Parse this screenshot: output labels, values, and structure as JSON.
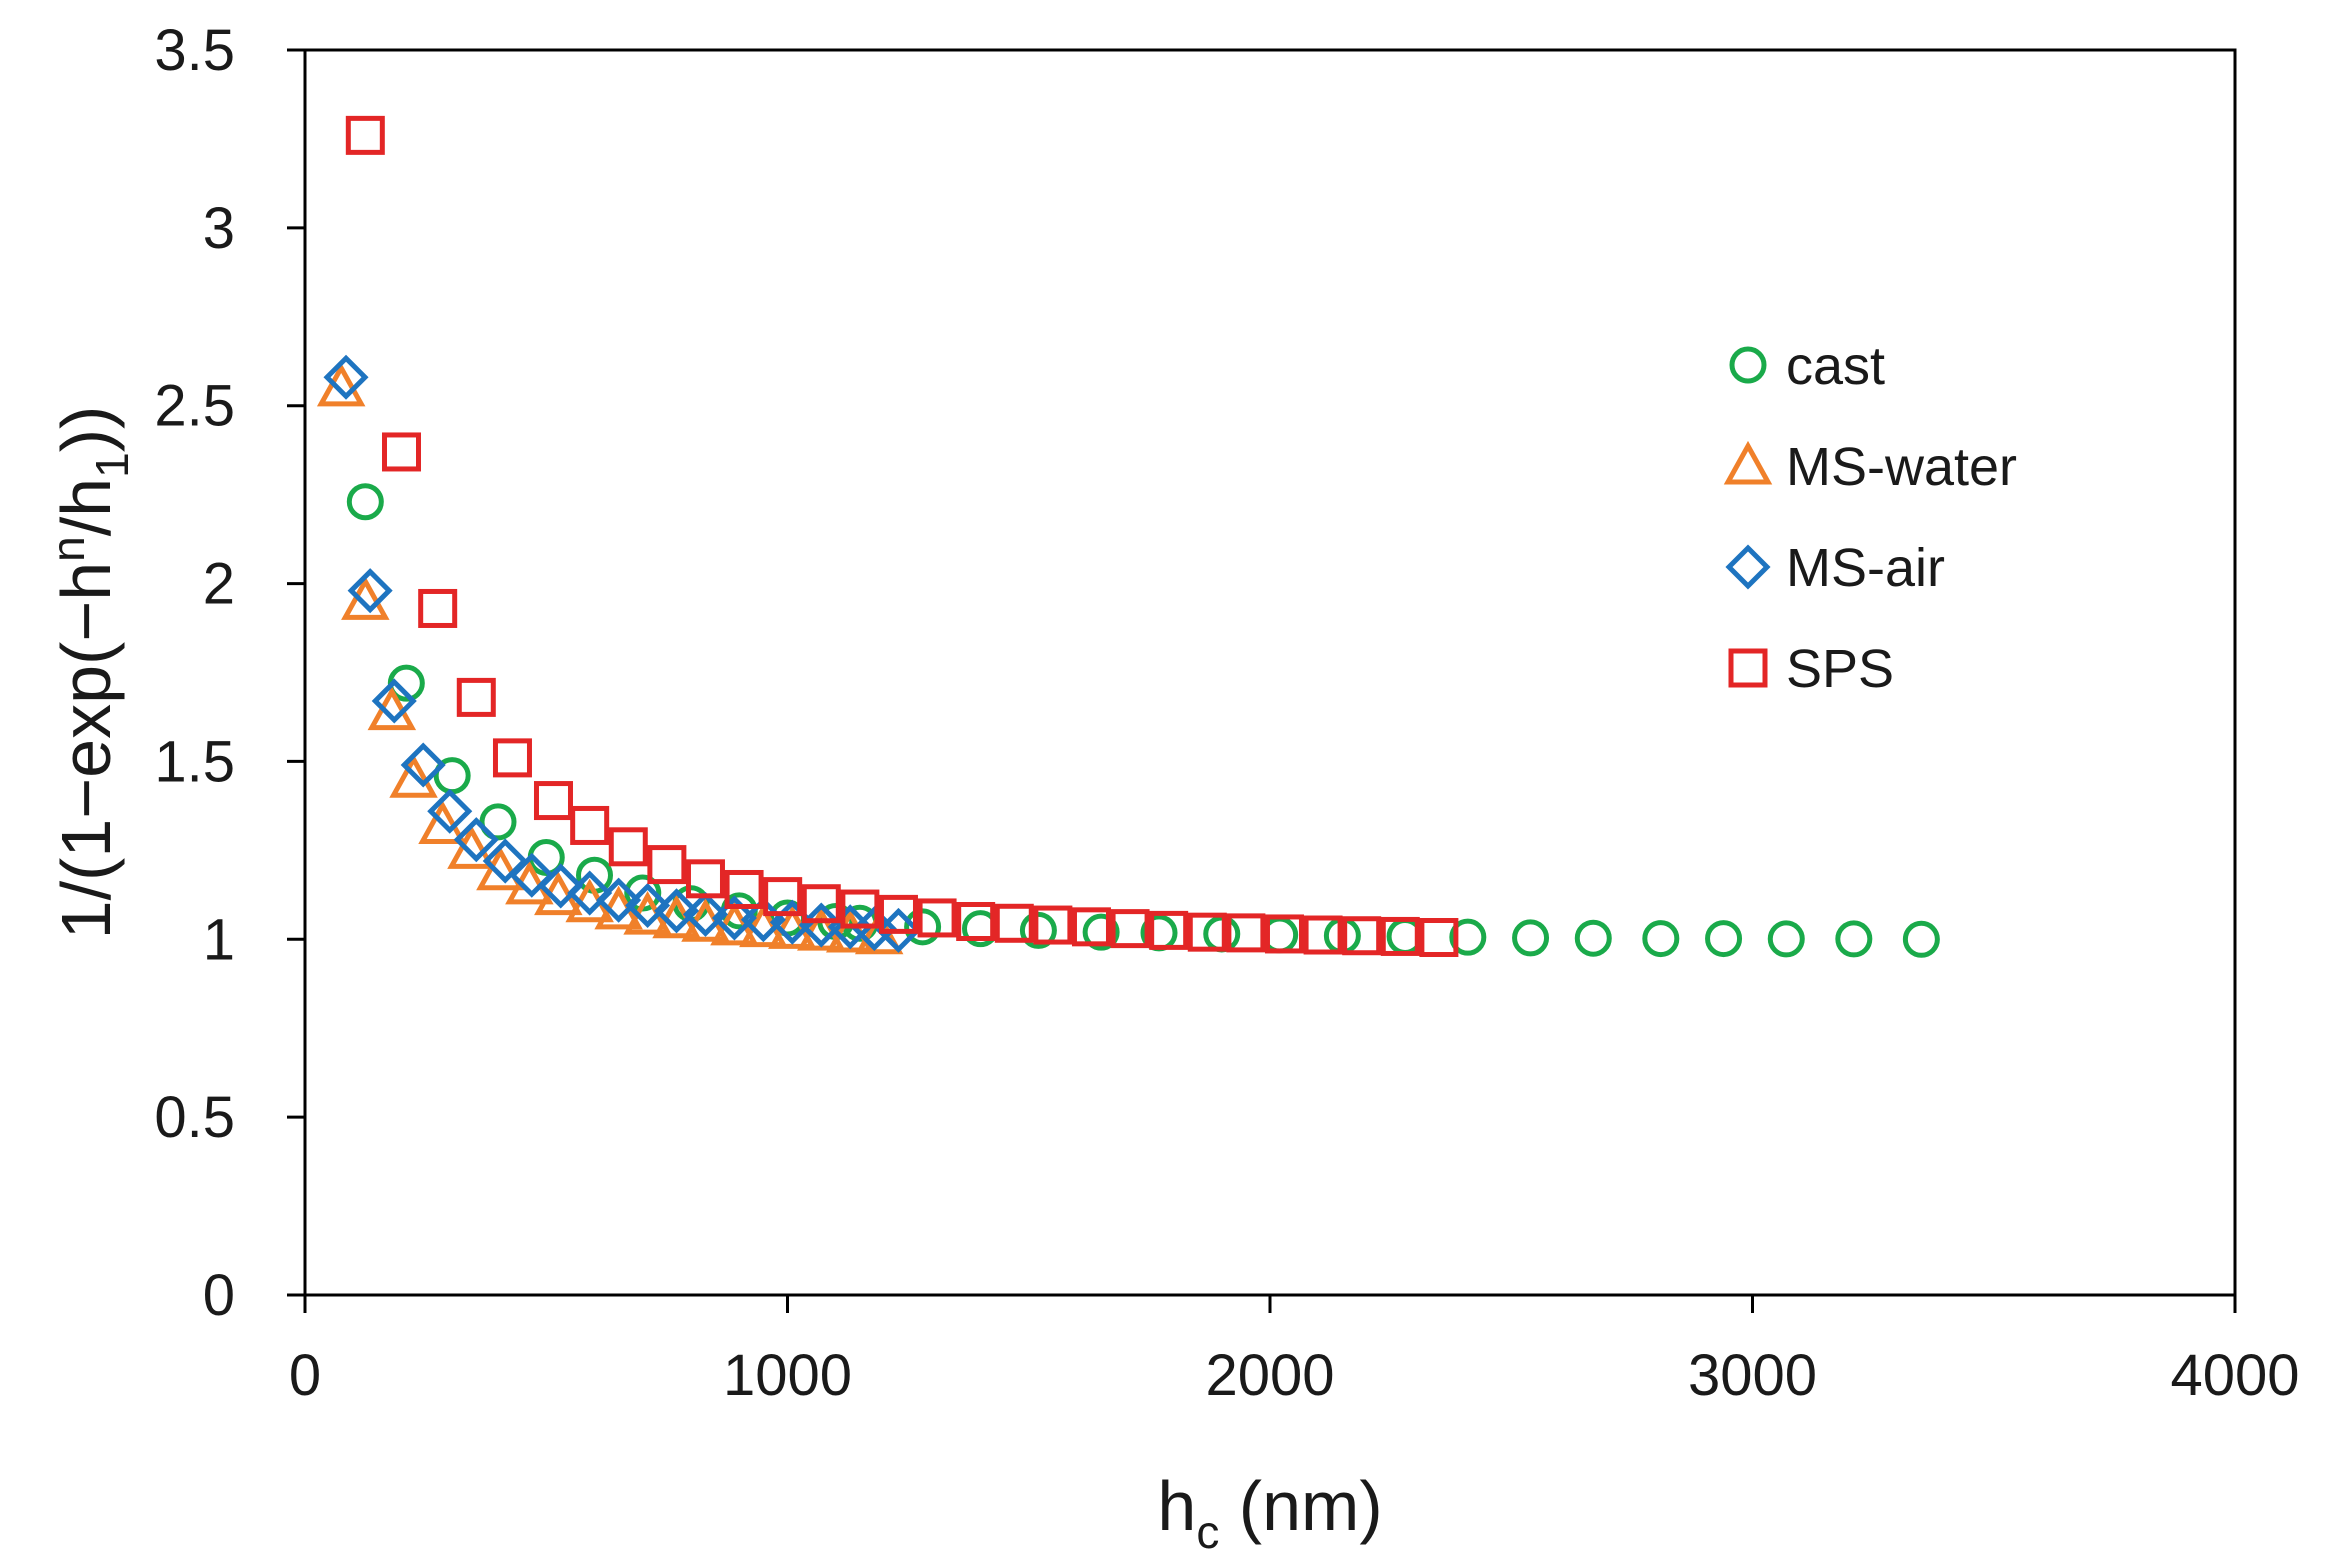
{
  "chart_data": {
    "type": "scatter",
    "title": "",
    "xlabel": {
      "base": "h",
      "sub": "c",
      "rest": " (nm)"
    },
    "ylabel": {
      "pre": "1/(1−exp(−h",
      "sup": "n",
      "mid": "/h",
      "sub": "1",
      "post": "))"
    },
    "xlim": [
      0,
      4000
    ],
    "ylim": [
      0,
      3.5
    ],
    "xticks": [
      0,
      1000,
      2000,
      3000,
      4000
    ],
    "xtick_labels": [
      "0",
      "1000",
      "2000",
      "3000",
      "4000"
    ],
    "yticks": [
      0,
      0.5,
      1,
      1.5,
      2,
      2.5,
      3,
      3.5
    ],
    "ytick_labels": [
      "0",
      "0.5",
      "1",
      "1.5",
      "2",
      "2.5",
      "3",
      "3.5"
    ],
    "legend_position": "right",
    "series": [
      {
        "name": "cast",
        "marker": "circle",
        "color": "#1aaa4a",
        "x": [
          125,
          210,
          305,
          400,
          500,
          600,
          700,
          800,
          900,
          1000,
          1100,
          1150,
          1280,
          1400,
          1520,
          1650,
          1770,
          1900,
          2020,
          2150,
          2280,
          2410,
          2540,
          2670,
          2810,
          2940,
          3070,
          3210,
          3350
        ],
        "y": [
          2.23,
          1.72,
          1.46,
          1.33,
          1.23,
          1.18,
          1.13,
          1.1,
          1.08,
          1.06,
          1.05,
          1.045,
          1.035,
          1.03,
          1.025,
          1.02,
          1.018,
          1.015,
          1.012,
          1.01,
          1.008,
          1.006,
          1.004,
          1.003,
          1.002,
          1.002,
          1.001,
          1.001,
          1.0
        ]
      },
      {
        "name": "MS-water",
        "marker": "triangle",
        "color": "#f0802a",
        "x": [
          75,
          125,
          180,
          225,
          285,
          345,
          405,
          465,
          525,
          590,
          650,
          710,
          770,
          830,
          890,
          950,
          1010,
          1070,
          1130,
          1190
        ],
        "y": [
          2.55,
          1.95,
          1.64,
          1.45,
          1.32,
          1.25,
          1.19,
          1.15,
          1.12,
          1.1,
          1.08,
          1.065,
          1.055,
          1.045,
          1.035,
          1.03,
          1.025,
          1.02,
          1.015,
          1.01
        ]
      },
      {
        "name": "MS-air",
        "marker": "diamond",
        "color": "#1e74c0",
        "x": [
          85,
          135,
          185,
          245,
          300,
          355,
          415,
          470,
          530,
          590,
          650,
          710,
          770,
          830,
          890,
          950,
          1010,
          1070,
          1130,
          1180,
          1230
        ],
        "y": [
          2.58,
          1.98,
          1.67,
          1.49,
          1.36,
          1.28,
          1.22,
          1.18,
          1.15,
          1.13,
          1.11,
          1.095,
          1.08,
          1.07,
          1.06,
          1.055,
          1.048,
          1.04,
          1.035,
          1.03,
          1.025
        ]
      },
      {
        "name": "SPS",
        "marker": "square",
        "color": "#e32626",
        "x": [
          125,
          200,
          275,
          355,
          430,
          515,
          590,
          670,
          750,
          830,
          910,
          990,
          1070,
          1150,
          1230,
          1310,
          1390,
          1470,
          1550,
          1630,
          1710,
          1790,
          1870,
          1950,
          2030,
          2110,
          2190,
          2270,
          2350
        ],
        "y": [
          3.26,
          2.37,
          1.93,
          1.68,
          1.51,
          1.39,
          1.32,
          1.26,
          1.21,
          1.17,
          1.14,
          1.12,
          1.1,
          1.085,
          1.07,
          1.06,
          1.05,
          1.045,
          1.04,
          1.035,
          1.03,
          1.025,
          1.02,
          1.018,
          1.015,
          1.012,
          1.01,
          1.008,
          1.005
        ]
      }
    ]
  }
}
